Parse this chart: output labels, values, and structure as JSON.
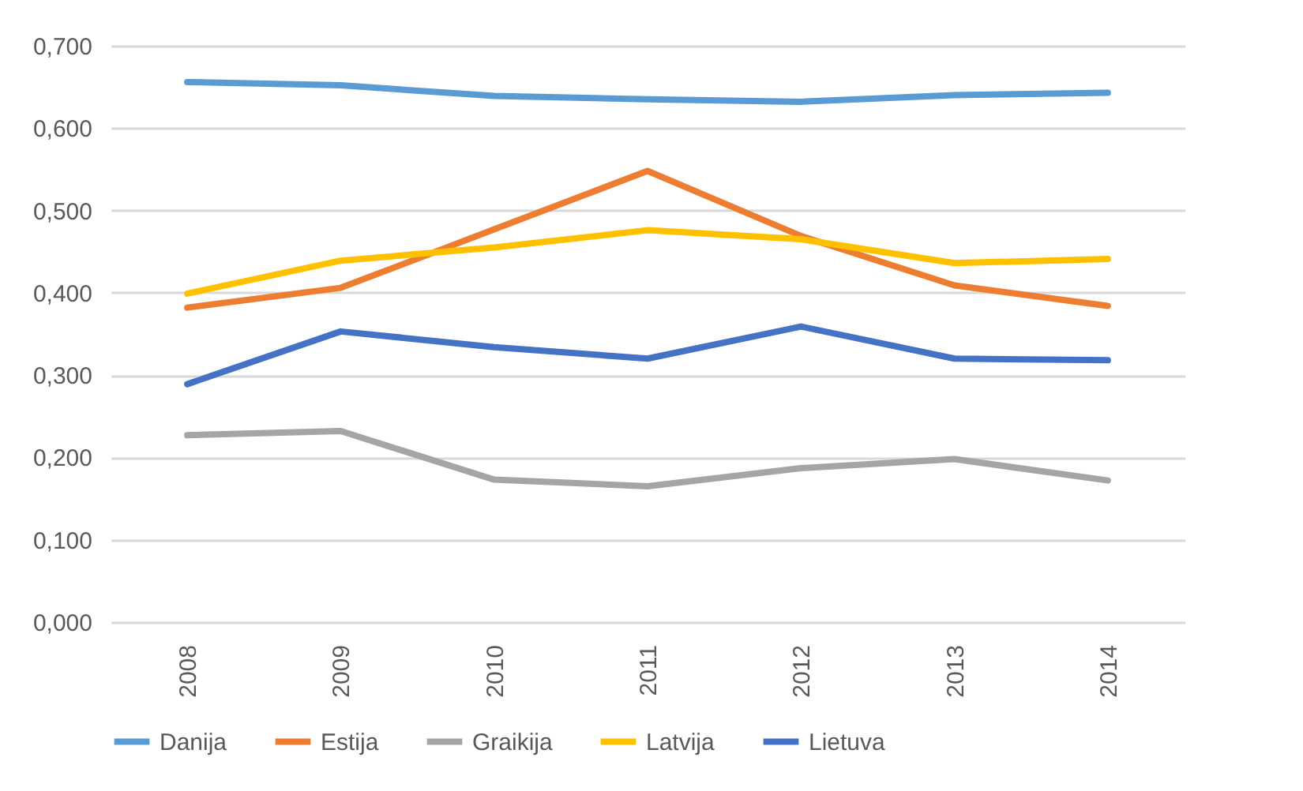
{
  "chart_data": {
    "type": "line",
    "categories": [
      "2008",
      "2009",
      "2010",
      "2011",
      "2012",
      "2013",
      "2014"
    ],
    "series": [
      {
        "name": "Danija",
        "color": "#5b9bd5",
        "values": [
          0.656,
          0.652,
          0.639,
          0.635,
          0.632,
          0.64,
          0.643
        ]
      },
      {
        "name": "Estija",
        "color": "#ed7d31",
        "values": [
          0.382,
          0.406,
          0.477,
          0.548,
          0.469,
          0.409,
          0.384
        ]
      },
      {
        "name": "Graikija",
        "color": "#a5a5a5",
        "values": [
          0.227,
          0.232,
          0.173,
          0.165,
          0.187,
          0.198,
          0.172
        ]
      },
      {
        "name": "Latvija",
        "color": "#ffc000",
        "values": [
          0.399,
          0.439,
          0.455,
          0.476,
          0.465,
          0.436,
          0.441
        ]
      },
      {
        "name": "Lietuva",
        "color": "#4472c4",
        "values": [
          0.289,
          0.353,
          0.334,
          0.32,
          0.359,
          0.32,
          0.318
        ]
      }
    ],
    "ylim": [
      0,
      0.7
    ],
    "yticks": [
      {
        "value": 0,
        "label": "0,000"
      },
      {
        "value": 0.1,
        "label": "0,100"
      },
      {
        "value": 0.2,
        "label": "0,200"
      },
      {
        "value": 0.3,
        "label": "0,300"
      },
      {
        "value": 0.4,
        "label": "0,400"
      },
      {
        "value": 0.5,
        "label": "0,500"
      },
      {
        "value": 0.6,
        "label": "0,600"
      },
      {
        "value": 0.7,
        "label": "0,700"
      }
    ],
    "grid": "y",
    "legend": "bottom",
    "marker": "none",
    "line_style": "solid"
  }
}
